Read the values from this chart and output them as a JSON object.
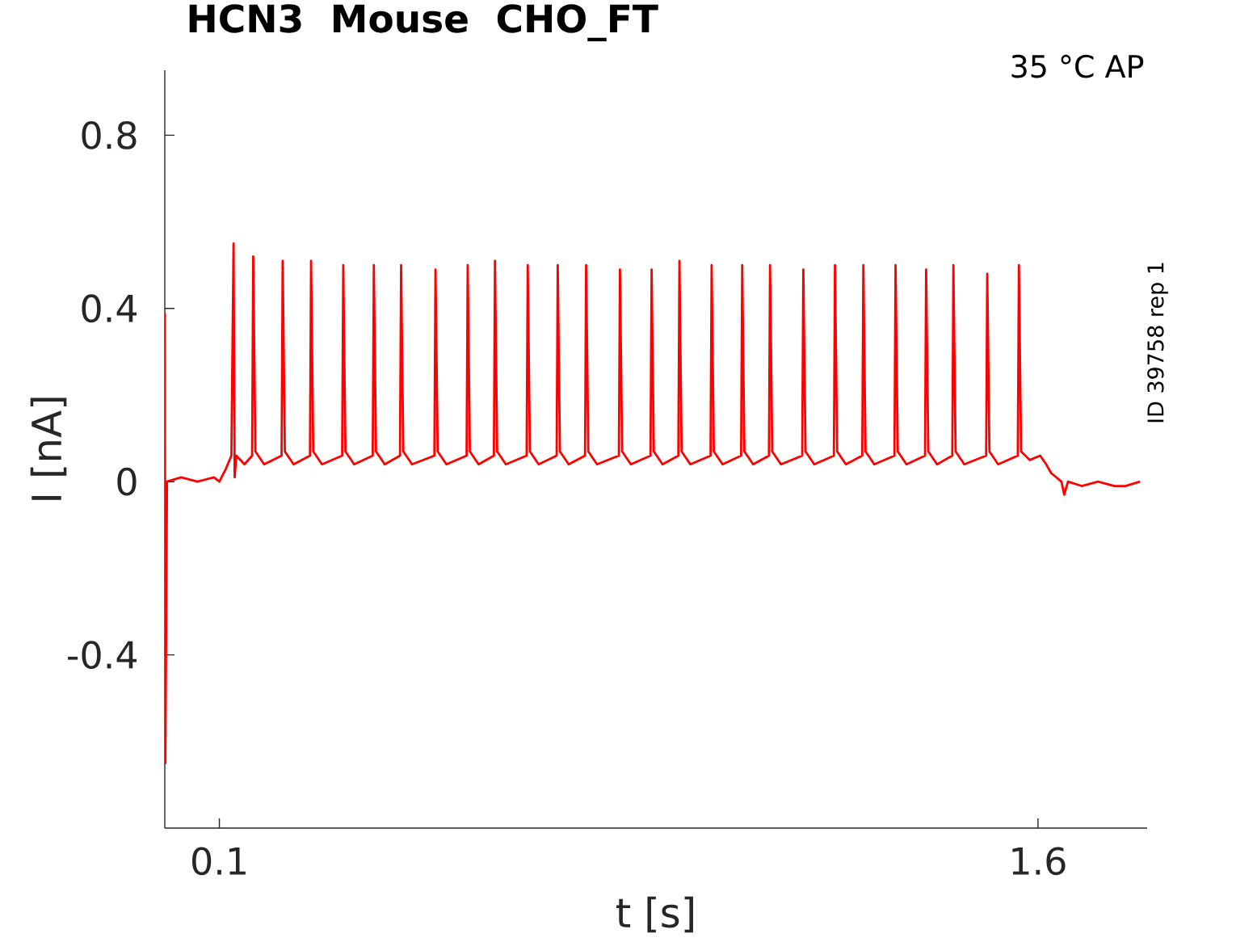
{
  "chart_data": {
    "type": "line",
    "title": "HCN3  Mouse  CHO_FT",
    "xlabel": "t [s]",
    "ylabel": "I [nA]",
    "annotations": [
      "35 °C  AP",
      "ID 39758 rep 1"
    ],
    "x": [
      0,
      0.001,
      0.004,
      0.03,
      0.06,
      0.09,
      0.1,
      0.112,
      0.122,
      0.126,
      0.128,
      0.131,
      0.146,
      0.16,
      0.162,
      0.166,
      0.182,
      0.214,
      0.216,
      0.22,
      0.236,
      0.266,
      0.268,
      0.272,
      0.288,
      0.325,
      0.327,
      0.331,
      0.347,
      0.381,
      0.383,
      0.387,
      0.403,
      0.431,
      0.433,
      0.437,
      0.453,
      0.494,
      0.496,
      0.5,
      0.516,
      0.553,
      0.555,
      0.559,
      0.575,
      0.603,
      0.605,
      0.609,
      0.625,
      0.663,
      0.665,
      0.669,
      0.685,
      0.718,
      0.72,
      0.724,
      0.74,
      0.77,
      0.772,
      0.776,
      0.792,
      0.832,
      0.834,
      0.838,
      0.854,
      0.89,
      0.892,
      0.896,
      0.912,
      0.941,
      0.943,
      0.947,
      0.963,
      1.0,
      1.002,
      1.006,
      1.022,
      1.056,
      1.058,
      1.062,
      1.078,
      1.107,
      1.109,
      1.113,
      1.129,
      1.168,
      1.17,
      1.174,
      1.19,
      1.226,
      1.228,
      1.232,
      1.248,
      1.278,
      1.28,
      1.284,
      1.3,
      1.337,
      1.339,
      1.343,
      1.359,
      1.393,
      1.395,
      1.399,
      1.415,
      1.443,
      1.445,
      1.449,
      1.465,
      1.505,
      1.507,
      1.511,
      1.527,
      1.563,
      1.565,
      1.569,
      1.585,
      1.604,
      1.615,
      1.624,
      1.643,
      1.648,
      1.655,
      1.68,
      1.71,
      1.74,
      1.76,
      1.787
    ],
    "series": [
      {
        "color": "#ff0000",
        "values": [
          0.39,
          -0.65,
          0.0,
          0.01,
          0.0,
          0.01,
          0.0,
          0.03,
          0.06,
          0.55,
          0.01,
          0.06,
          0.04,
          0.06,
          0.52,
          0.07,
          0.04,
          0.06,
          0.51,
          0.07,
          0.04,
          0.06,
          0.51,
          0.07,
          0.04,
          0.06,
          0.5,
          0.07,
          0.04,
          0.06,
          0.5,
          0.07,
          0.04,
          0.06,
          0.5,
          0.07,
          0.04,
          0.06,
          0.49,
          0.07,
          0.04,
          0.06,
          0.5,
          0.07,
          0.04,
          0.06,
          0.51,
          0.07,
          0.04,
          0.06,
          0.5,
          0.07,
          0.04,
          0.06,
          0.5,
          0.07,
          0.04,
          0.06,
          0.5,
          0.07,
          0.04,
          0.06,
          0.49,
          0.07,
          0.04,
          0.06,
          0.49,
          0.07,
          0.04,
          0.06,
          0.51,
          0.07,
          0.04,
          0.06,
          0.5,
          0.07,
          0.04,
          0.06,
          0.5,
          0.07,
          0.04,
          0.06,
          0.5,
          0.07,
          0.04,
          0.06,
          0.49,
          0.07,
          0.04,
          0.06,
          0.5,
          0.07,
          0.04,
          0.06,
          0.5,
          0.07,
          0.04,
          0.06,
          0.5,
          0.07,
          0.04,
          0.06,
          0.49,
          0.07,
          0.04,
          0.06,
          0.5,
          0.07,
          0.04,
          0.06,
          0.48,
          0.07,
          0.04,
          0.06,
          0.5,
          0.07,
          0.05,
          0.06,
          0.04,
          0.02,
          0.0,
          -0.03,
          0.0,
          -0.01,
          0.0,
          -0.01,
          -0.01,
          0.0
        ]
      }
    ],
    "xlim": [
      0,
      1.8
    ],
    "ylim": [
      -0.8,
      0.95
    ],
    "xticks": [
      0.1,
      1.6
    ],
    "yticks": [
      -0.4,
      0,
      0.4,
      0.8
    ],
    "line_style": "solid"
  }
}
